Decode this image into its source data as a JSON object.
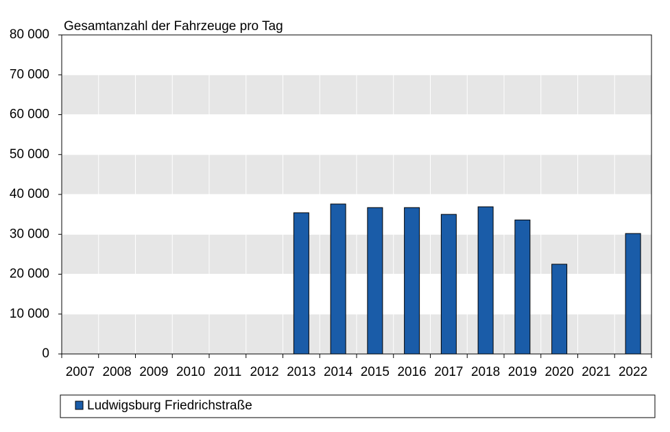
{
  "chart_data": {
    "type": "bar",
    "title": "Gesamtanzahl der Fahrzeuge pro Tag",
    "categories": [
      "2007",
      "2008",
      "2009",
      "2010",
      "2011",
      "2012",
      "2013",
      "2014",
      "2015",
      "2016",
      "2017",
      "2018",
      "2019",
      "2020",
      "2021",
      "2022"
    ],
    "series": [
      {
        "name": "Ludwigsburg Friedrichstraße",
        "color": "#1a5ca8",
        "values": [
          null,
          null,
          null,
          null,
          null,
          null,
          35400,
          37600,
          36700,
          36700,
          35000,
          36900,
          33600,
          22500,
          null,
          30200
        ]
      }
    ],
    "ylim": [
      0,
      80000
    ],
    "yticks": [
      0,
      {
        "value": 10000,
        "label": "10 000"
      },
      {
        "value": 20000,
        "label": "20 000"
      },
      {
        "value": 30000,
        "label": "30 000"
      },
      {
        "value": 40000,
        "label": "40 000"
      },
      {
        "value": 50000,
        "label": "50 000"
      },
      {
        "value": 60000,
        "label": "60 000"
      },
      {
        "value": 70000,
        "label": "70 000"
      },
      {
        "value": 80000,
        "label": "80 000"
      }
    ],
    "grid": true
  }
}
